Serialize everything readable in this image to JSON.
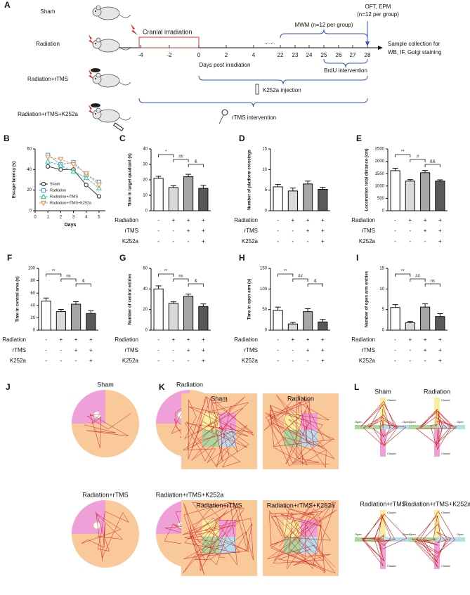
{
  "panel_a": {
    "label": "A",
    "groups": [
      "Sham",
      "Radiation",
      "Radiation+rTMS",
      "Radiation+rTMS+K252a"
    ],
    "cranial": "Cranial irradiation",
    "ticks": [
      "-4",
      "-2",
      "0",
      "2",
      "4",
      "......",
      "22",
      "23",
      "24",
      "25",
      "26",
      "27",
      "28"
    ],
    "axis_label": "Days post irradiation",
    "mwm": "MWM (n=12 per group)",
    "oft": "OFT, EPM",
    "oft_n": "(n=12 per group)",
    "sample": "Sample collection for",
    "sample2": "WB, IF, Golgi staining",
    "brdu": "BrdU intervention",
    "k252a": "K252a injection",
    "rtms": "rTMS intervention"
  },
  "chart_data": [
    {
      "panel": "B",
      "type": "line",
      "y_label": "Escape latency (s)",
      "x_label": "Days",
      "x": [
        1,
        2,
        3,
        4,
        5
      ],
      "xlim": [
        0,
        5.5
      ],
      "xticks": [
        0,
        1,
        2,
        3,
        4,
        5
      ],
      "ylim": [
        0,
        60
      ],
      "yticks": [
        0,
        20,
        40,
        60
      ],
      "legend": "lower left",
      "series": [
        {
          "name": "Sham",
          "color": "#333333",
          "marker": "circle",
          "values": [
            43,
            40,
            40,
            25,
            14
          ]
        },
        {
          "name": "Radiation",
          "color": "#5b9bd5",
          "marker": "square",
          "values": [
            54,
            45,
            47,
            35,
            28
          ]
        },
        {
          "name": "Radiation+rTMS",
          "color": "#3cc8a0",
          "marker": "triangle",
          "values": [
            48,
            44,
            38,
            32,
            22
          ]
        },
        {
          "name": "Radiation+rTMS+K252a",
          "color": "#f0964a",
          "marker": "triangle-down",
          "values": [
            52,
            50,
            45,
            36,
            25
          ]
        }
      ]
    },
    {
      "panel": "C",
      "type": "bar",
      "y_label": "Time in target quadrant (s)",
      "ylim": [
        0,
        40
      ],
      "yticks": [
        0,
        10,
        20,
        30,
        40
      ],
      "values": [
        21,
        15,
        22,
        14.5
      ],
      "errors": [
        1.3,
        1.2,
        1.6,
        1.9
      ],
      "colors": [
        "#ffffff",
        "#d9d9d9",
        "#a6a6a6",
        "#595959"
      ],
      "significance": [
        {
          "pair": [
            0,
            1
          ],
          "label": "*"
        },
        {
          "pair": [
            1,
            2
          ],
          "label": "##"
        },
        {
          "pair": [
            2,
            3
          ],
          "label": "&"
        }
      ],
      "rows": [
        "Radiation",
        "rTMS",
        "K252a"
      ],
      "signs": [
        [
          "-",
          "+",
          "+",
          "+"
        ],
        [
          "-",
          "-",
          "+",
          "+"
        ],
        [
          "-",
          "-",
          "-",
          "+"
        ]
      ]
    },
    {
      "panel": "D",
      "type": "bar",
      "y_label": "Number of platform crossings",
      "ylim": [
        0,
        15
      ],
      "yticks": [
        0,
        5,
        10,
        15
      ],
      "values": [
        5.8,
        4.8,
        6.5,
        5.2
      ],
      "errors": [
        0.6,
        0.7,
        0.7,
        0.5
      ],
      "colors": [
        "#ffffff",
        "#d9d9d9",
        "#a6a6a6",
        "#595959"
      ],
      "significance": [],
      "rows": [
        "Radiation",
        "rTMS",
        "K252a"
      ],
      "signs": [
        [
          "-",
          "+",
          "+",
          "+"
        ],
        [
          "-",
          "-",
          "+",
          "+"
        ],
        [
          "-",
          "-",
          "-",
          "+"
        ]
      ]
    },
    {
      "panel": "E",
      "type": "bar",
      "y_label": "Locomotion total distance (cm)",
      "ylim": [
        0,
        2500
      ],
      "yticks": [
        0,
        500,
        1000,
        1500,
        2000,
        2500
      ],
      "values": [
        1620,
        1200,
        1540,
        1200
      ],
      "errors": [
        100,
        60,
        90,
        50
      ],
      "colors": [
        "#ffffff",
        "#d9d9d9",
        "#a6a6a6",
        "#595959"
      ],
      "significance": [
        {
          "pair": [
            0,
            1
          ],
          "label": "**"
        },
        {
          "pair": [
            1,
            2
          ],
          "label": "#"
        },
        {
          "pair": [
            2,
            3
          ],
          "label": "&&"
        }
      ],
      "rows": [
        "Radiation",
        "rTMS",
        "K252a"
      ],
      "signs": [
        [
          "-",
          "+",
          "+",
          "+"
        ],
        [
          "-",
          "-",
          "+",
          "+"
        ],
        [
          "-",
          "-",
          "-",
          "+"
        ]
      ]
    },
    {
      "panel": "F",
      "type": "bar",
      "y_label": "Time in central area (s)",
      "ylim": [
        0,
        100
      ],
      "yticks": [
        0,
        20,
        40,
        60,
        80,
        100
      ],
      "values": [
        47,
        30,
        42,
        27
      ],
      "errors": [
        5,
        3.5,
        4,
        4.5
      ],
      "colors": [
        "#ffffff",
        "#d9d9d9",
        "#a6a6a6",
        "#595959"
      ],
      "significance": [
        {
          "pair": [
            0,
            1
          ],
          "label": "**"
        },
        {
          "pair": [
            1,
            2
          ],
          "label": "ns"
        },
        {
          "pair": [
            2,
            3
          ],
          "label": "&"
        }
      ],
      "rows": [
        "Radiation",
        "rTMS",
        "K252a"
      ],
      "signs": [
        [
          "-",
          "+",
          "+",
          "+"
        ],
        [
          "-",
          "-",
          "+",
          "+"
        ],
        [
          "-",
          "-",
          "-",
          "+"
        ]
      ]
    },
    {
      "panel": "G",
      "type": "bar",
      "y_label": "Number of central entries",
      "ylim": [
        0,
        60
      ],
      "yticks": [
        0,
        20,
        40,
        60
      ],
      "values": [
        40,
        26,
        33,
        23
      ],
      "errors": [
        3,
        1.5,
        2,
        2.5
      ],
      "colors": [
        "#ffffff",
        "#d9d9d9",
        "#a6a6a6",
        "#595959"
      ],
      "significance": [
        {
          "pair": [
            0,
            1
          ],
          "label": "**"
        },
        {
          "pair": [
            1,
            2
          ],
          "label": "ns"
        },
        {
          "pair": [
            2,
            3
          ],
          "label": "&"
        }
      ],
      "rows": [
        "Radiation",
        "rTMS",
        "K252a"
      ],
      "signs": [
        [
          "-",
          "+",
          "+",
          "+"
        ],
        [
          "-",
          "-",
          "+",
          "+"
        ],
        [
          "-",
          "-",
          "-",
          "+"
        ]
      ]
    },
    {
      "panel": "H",
      "type": "bar",
      "y_label": "Time in open arm (s)",
      "ylim": [
        0,
        150
      ],
      "yticks": [
        0,
        50,
        100,
        150
      ],
      "values": [
        48,
        15,
        45,
        20
      ],
      "errors": [
        8,
        4,
        7,
        6
      ],
      "colors": [
        "#ffffff",
        "#d9d9d9",
        "#a6a6a6",
        "#595959"
      ],
      "significance": [
        {
          "pair": [
            0,
            1
          ],
          "label": "**"
        },
        {
          "pair": [
            1,
            2
          ],
          "label": "##"
        },
        {
          "pair": [
            2,
            3
          ],
          "label": "&"
        }
      ],
      "rows": [
        "Radiation",
        "rTMS",
        "K252a"
      ],
      "signs": [
        [
          "-",
          "+",
          "+",
          "+"
        ],
        [
          "-",
          "-",
          "+",
          "+"
        ],
        [
          "-",
          "-",
          "-",
          "+"
        ]
      ]
    },
    {
      "panel": "I",
      "type": "bar",
      "y_label": "Number of open arm entries",
      "ylim": [
        0,
        15
      ],
      "yticks": [
        0,
        5,
        10,
        15
      ],
      "values": [
        5.5,
        1.8,
        5.6,
        3.3
      ],
      "errors": [
        0.7,
        0.3,
        0.8,
        0.7
      ],
      "colors": [
        "#ffffff",
        "#d9d9d9",
        "#a6a6a6",
        "#595959"
      ],
      "significance": [
        {
          "pair": [
            0,
            1
          ],
          "label": "**"
        },
        {
          "pair": [
            1,
            2
          ],
          "label": "##"
        },
        {
          "pair": [
            2,
            3
          ],
          "label": "ns"
        }
      ],
      "rows": [
        "Radiation",
        "rTMS",
        "K252a"
      ],
      "signs": [
        [
          "-",
          "+",
          "+",
          "+"
        ],
        [
          "-",
          "-",
          "+",
          "+"
        ],
        [
          "-",
          "-",
          "-",
          "+"
        ]
      ]
    }
  ],
  "panel_j": {
    "label": "J",
    "titles": [
      "Sham",
      "Radiation",
      "Radiation+rTMS",
      "Radiation+rTMS+K252a"
    ]
  },
  "panel_k": {
    "label": "K",
    "titles": [
      "Sham",
      "Radiation",
      "Radiation+rTMS",
      "Radiation+rTMS+K252a"
    ]
  },
  "panel_l": {
    "label": "L",
    "titles": [
      "Sham",
      "Radiation",
      "Radiation+rTMS",
      "Radiation+rTMS+K252a"
    ],
    "open": "Open",
    "closed": "Closed"
  }
}
